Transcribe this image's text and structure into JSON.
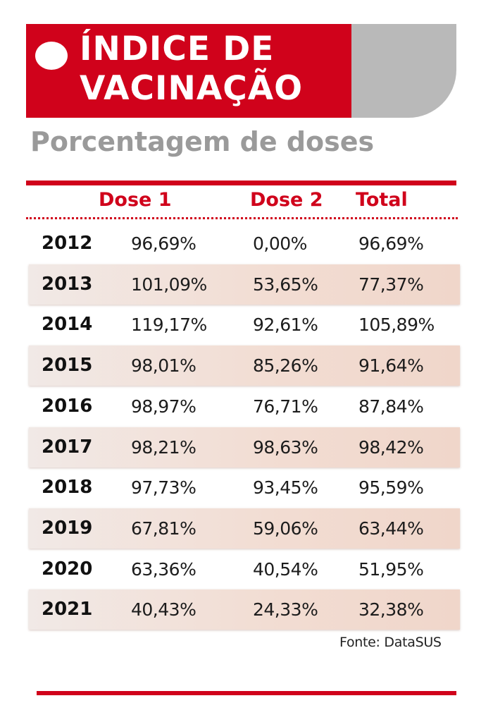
{
  "title": {
    "line1": "ÍNDICE DE",
    "line2": "VACINAÇÃO"
  },
  "subtitle": "Porcentagem de doses",
  "source": "Fonte: DataSUS",
  "colors": {
    "brand_red": "#d0021b",
    "banner_gray": "#b9b9b9",
    "subtitle_gray": "#9a9a9a",
    "band_fill": "#f2ddd3"
  },
  "chart_data": {
    "type": "table",
    "title": "ÍNDICE DE VACINAÇÃO",
    "subtitle": "Porcentagem de doses",
    "columns": [
      "",
      "Dose 1",
      "Dose 2",
      "Total"
    ],
    "rows": [
      {
        "year": "2012",
        "dose1": "96,69%",
        "dose2": "0,00%",
        "total": "96,69%"
      },
      {
        "year": "2013",
        "dose1": "101,09%",
        "dose2": "53,65%",
        "total": "77,37%"
      },
      {
        "year": "2014",
        "dose1": "119,17%",
        "dose2": "92,61%",
        "total": "105,89%"
      },
      {
        "year": "2015",
        "dose1": "98,01%",
        "dose2": "85,26%",
        "total": "91,64%"
      },
      {
        "year": "2016",
        "dose1": "98,97%",
        "dose2": "76,71%",
        "total": "87,84%"
      },
      {
        "year": "2017",
        "dose1": "98,21%",
        "dose2": "98,63%",
        "total": "98,42%"
      },
      {
        "year": "2018",
        "dose1": "97,73%",
        "dose2": "93,45%",
        "total": "95,59%"
      },
      {
        "year": "2019",
        "dose1": "67,81%",
        "dose2": "59,06%",
        "total": "63,44%"
      },
      {
        "year": "2020",
        "dose1": "63,36%",
        "dose2": "40,54%",
        "total": "51,95%"
      },
      {
        "year": "2021",
        "dose1": "40,43%",
        "dose2": "24,33%",
        "total": "32,38%"
      }
    ],
    "source": "Fonte: DataSUS"
  }
}
